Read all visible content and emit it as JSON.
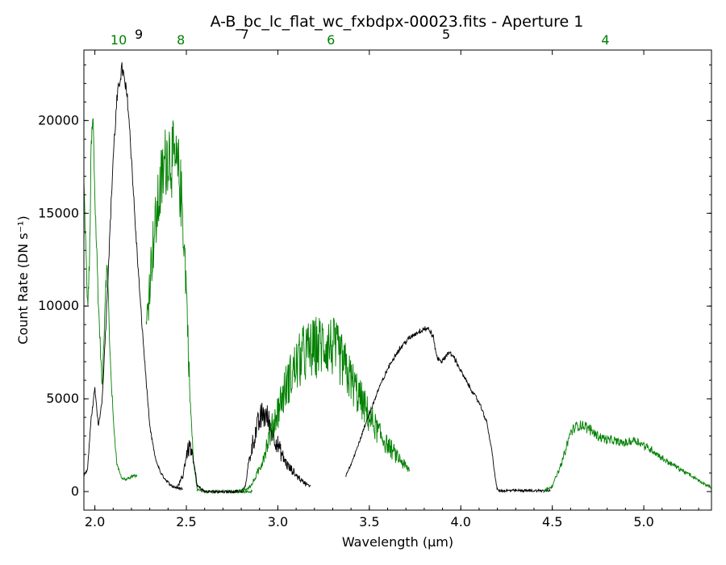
{
  "chart_data": {
    "type": "line",
    "title": "A-B_bc_lc_flat_wc_fxbdpx-00023.fits - Aperture 1",
    "xlabel": "Wavelength (μm)",
    "ylabel": "Count Rate (DN s⁻¹)",
    "xlim": [
      1.94,
      5.37
    ],
    "ylim": [
      -1000,
      23800
    ],
    "x_ticks": [
      2.0,
      2.5,
      3.0,
      3.5,
      4.0,
      4.5,
      5.0
    ],
    "x_tick_labels": [
      "2.0",
      "2.5",
      "3.0",
      "3.5",
      "4.0",
      "4.5",
      "5.0"
    ],
    "y_ticks": [
      0,
      5000,
      10000,
      15000,
      20000
    ],
    "y_tick_labels": [
      "0",
      "5000",
      "10000",
      "15000",
      "20000"
    ],
    "grid": false,
    "colors": {
      "black": "#000000",
      "green": "#008000"
    },
    "order_labels": [
      {
        "text": "10",
        "x": 2.13,
        "color": "#008000"
      },
      {
        "text": "9",
        "x": 2.24,
        "color": "#000000"
      },
      {
        "text": "8",
        "x": 2.47,
        "color": "#008000"
      },
      {
        "text": "7",
        "x": 2.82,
        "color": "#000000"
      },
      {
        "text": "6",
        "x": 3.29,
        "color": "#008000"
      },
      {
        "text": "5",
        "x": 3.92,
        "color": "#000000"
      },
      {
        "text": "4",
        "x": 4.79,
        "color": "#008000"
      }
    ],
    "series": [
      {
        "order": "10",
        "color": "#008000",
        "noise": 0.05,
        "x": [
          1.94,
          1.96,
          1.97,
          1.98,
          1.99,
          2.0,
          2.02,
          2.04,
          2.06,
          2.07,
          2.08,
          2.1,
          2.12,
          2.14,
          2.15,
          2.17,
          2.19,
          2.2,
          2.23
        ],
        "y": [
          16500,
          10000,
          12000,
          18500,
          20000,
          16000,
          10000,
          5500,
          11500,
          12000,
          8000,
          4000,
          1500,
          900,
          700,
          650,
          700,
          800,
          900
        ]
      },
      {
        "order": "9",
        "color": "#000000",
        "noise": 0.02,
        "x": [
          1.94,
          1.96,
          1.98,
          2.0,
          2.02,
          2.04,
          2.06,
          2.08,
          2.1,
          2.12,
          2.14,
          2.15,
          2.16,
          2.18,
          2.2,
          2.22,
          2.25,
          2.28,
          2.3,
          2.33,
          2.36,
          2.39,
          2.42,
          2.45,
          2.48
        ],
        "y": [
          900,
          1200,
          4000,
          5500,
          3500,
          5000,
          9000,
          13500,
          18000,
          21000,
          22500,
          22800,
          22200,
          21000,
          18000,
          14500,
          10000,
          6000,
          3500,
          1800,
          1000,
          600,
          300,
          200,
          150
        ]
      },
      {
        "order": "8",
        "color": "#008000",
        "noise": 0.12,
        "x": [
          2.28,
          2.3,
          2.32,
          2.34,
          2.36,
          2.38,
          2.4,
          2.42,
          2.44,
          2.46,
          2.48,
          2.5,
          2.52,
          2.54,
          2.56,
          2.6,
          2.7,
          2.8,
          2.86
        ],
        "y": [
          8500,
          11500,
          13500,
          15000,
          16500,
          17500,
          18500,
          18000,
          17500,
          17000,
          15000,
          11000,
          5000,
          1500,
          100,
          0,
          0,
          0,
          0
        ]
      },
      {
        "order": "7",
        "color": "#000000",
        "noise": 0.2,
        "x": [
          2.45,
          2.48,
          2.5,
          2.52,
          2.54,
          2.56,
          2.6,
          2.65,
          2.7,
          2.75,
          2.8,
          2.82,
          2.84,
          2.86,
          2.88,
          2.9,
          2.92,
          2.94,
          2.96,
          2.98,
          3.0,
          3.03,
          3.06,
          3.1,
          3.14,
          3.18
        ],
        "y": [
          200,
          800,
          2000,
          2500,
          1500,
          300,
          0,
          0,
          0,
          0,
          0,
          200,
          1500,
          2500,
          3200,
          3800,
          4200,
          4000,
          3500,
          3000,
          2500,
          1800,
          1300,
          900,
          500,
          300
        ]
      },
      {
        "order": "6",
        "color": "#008000",
        "noise": 0.22,
        "x": [
          2.78,
          2.82,
          2.86,
          2.9,
          2.94,
          2.98,
          3.02,
          3.06,
          3.1,
          3.14,
          3.18,
          3.22,
          3.26,
          3.3,
          3.34,
          3.38,
          3.42,
          3.46,
          3.5,
          3.55,
          3.6,
          3.65,
          3.72
        ],
        "y": [
          0,
          100,
          400,
          1200,
          2500,
          3800,
          5000,
          6000,
          6800,
          7400,
          7600,
          7800,
          8000,
          7800,
          7200,
          6400,
          5600,
          4800,
          4000,
          3200,
          2500,
          1900,
          1100
        ]
      },
      {
        "order": "5",
        "color": "#000000",
        "noise": 0.015,
        "x": [
          3.37,
          3.4,
          3.45,
          3.5,
          3.55,
          3.6,
          3.65,
          3.7,
          3.75,
          3.8,
          3.83,
          3.85,
          3.87,
          3.9,
          3.93,
          3.96,
          4.0,
          4.05,
          4.1,
          4.14,
          4.17,
          4.19,
          4.2,
          4.21,
          4.22,
          4.25,
          4.3,
          4.35,
          4.4,
          4.45,
          4.49
        ],
        "y": [
          800,
          1500,
          2800,
          4200,
          5500,
          6600,
          7500,
          8100,
          8500,
          8800,
          8700,
          8300,
          7200,
          7000,
          7500,
          7300,
          6500,
          5600,
          4800,
          3800,
          2200,
          600,
          100,
          50,
          50,
          50,
          50,
          50,
          50,
          50,
          50
        ]
      },
      {
        "order": "4",
        "color": "#008000",
        "noise": 0.08,
        "x": [
          4.45,
          4.5,
          4.55,
          4.58,
          4.6,
          4.63,
          4.66,
          4.7,
          4.75,
          4.8,
          4.85,
          4.9,
          4.95,
          5.0,
          5.05,
          5.1,
          5.15,
          5.2,
          5.25,
          5.3,
          5.37
        ],
        "y": [
          0,
          300,
          1500,
          2500,
          3200,
          3500,
          3600,
          3400,
          3000,
          2800,
          2700,
          2600,
          2800,
          2500,
          2200,
          1800,
          1500,
          1200,
          900,
          600,
          200
        ]
      }
    ]
  }
}
